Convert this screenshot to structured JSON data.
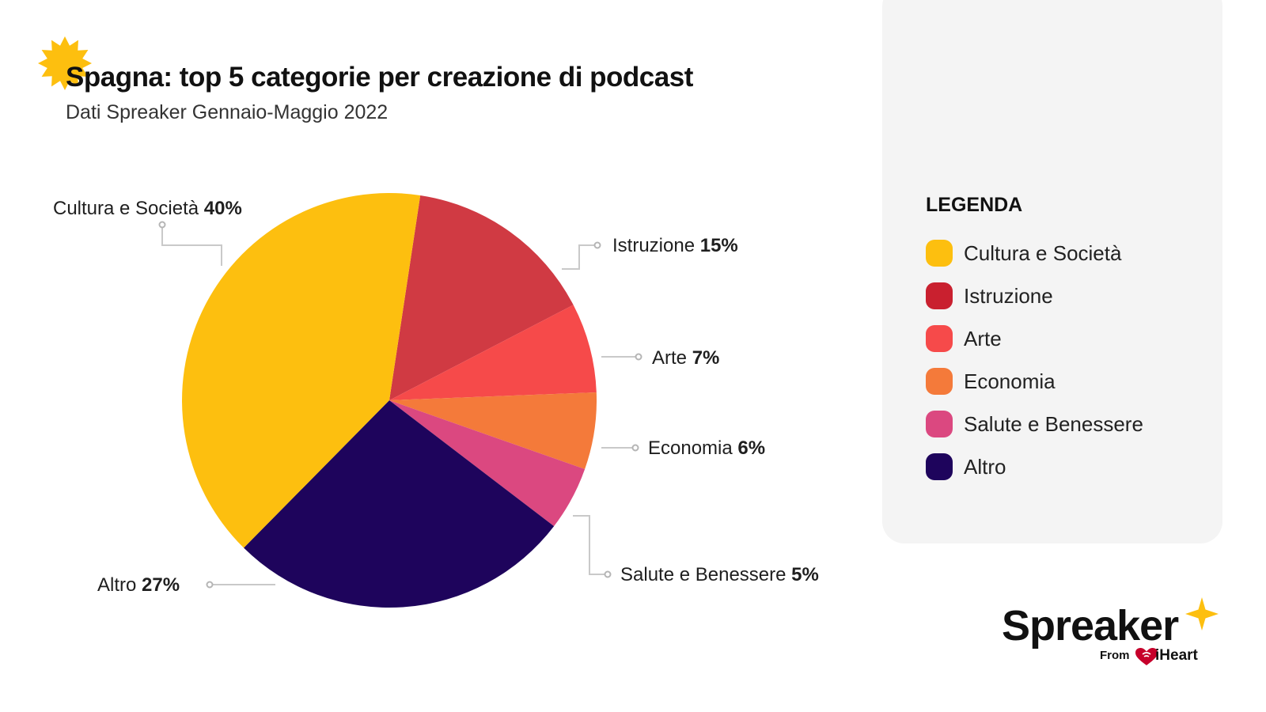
{
  "header": {
    "title": "Spagna: top 5 categorie per creazione di podcast",
    "subtitle": "Dati Spreaker Gennaio-Maggio 2022"
  },
  "legend": {
    "title": "LEGENDA",
    "items": [
      {
        "label": "Cultura e Società",
        "color": "#FDBF0F"
      },
      {
        "label": "Istruzione",
        "color": "#C9202F"
      },
      {
        "label": "Arte",
        "color": "#F64A4A"
      },
      {
        "label": "Economia",
        "color": "#F47A3A"
      },
      {
        "label": "Salute e Benessere",
        "color": "#DB4880"
      },
      {
        "label": "Altro",
        "color": "#1E045C"
      }
    ]
  },
  "chart_data": {
    "type": "pie",
    "title": "Spagna: top 5 categorie per creazione di podcast",
    "subtitle": "Dati Spreaker Gennaio-Maggio 2022",
    "slices": [
      {
        "label": "Cultura e Società",
        "value": 40,
        "display": "40%",
        "color": "#FDBF0F"
      },
      {
        "label": "Istruzione",
        "value": 15,
        "display": "15%",
        "color": "#D03A43"
      },
      {
        "label": "Arte",
        "value": 7,
        "display": "7%",
        "color": "#F64A4A"
      },
      {
        "label": "Economia",
        "value": 6,
        "display": "6%",
        "color": "#F47A3A"
      },
      {
        "label": "Salute e Benessere",
        "value": 5,
        "display": "5%",
        "color": "#DB4880"
      },
      {
        "label": "Altro",
        "value": 27,
        "display": "27%",
        "color": "#1E045C"
      }
    ]
  },
  "brand": {
    "name": "Spreaker",
    "from": "From",
    "partner": "iHeart"
  }
}
